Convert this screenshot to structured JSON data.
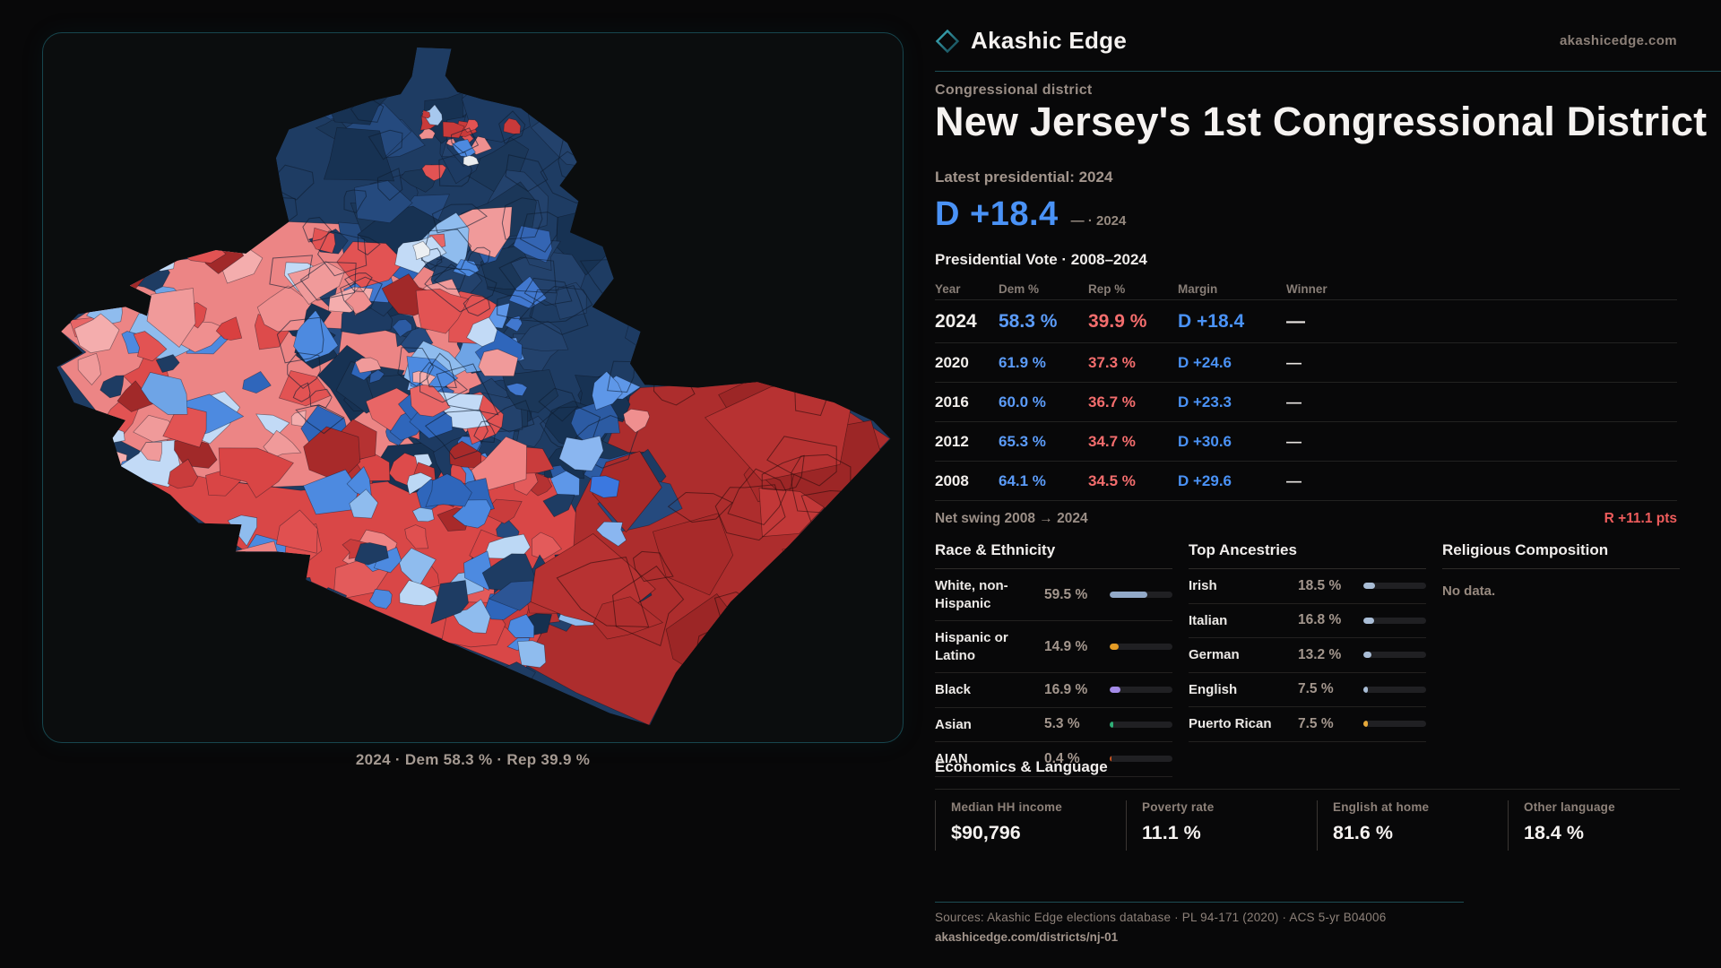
{
  "brand": {
    "name": "Akashic Edge",
    "domain": "akashicedge.com"
  },
  "header": {
    "kicker": "Congressional district",
    "title": "New Jersey's 1st Congressional District",
    "latest_label": "Latest presidential: 2024",
    "headline_margin": "D +18.4",
    "headline_note": "— · 2024"
  },
  "vote_table": {
    "section_title": "Presidential Vote · 2008–2024",
    "columns": [
      "Year",
      "Dem %",
      "Rep %",
      "Margin",
      "Winner"
    ],
    "rows": [
      {
        "year": "2024",
        "dem": "58.3 %",
        "rep": "39.9 %",
        "margin": "D +18.4",
        "winner": "—",
        "highlight": true
      },
      {
        "year": "2020",
        "dem": "61.9 %",
        "rep": "37.3 %",
        "margin": "D +24.6",
        "winner": "—",
        "highlight": false
      },
      {
        "year": "2016",
        "dem": "60.0 %",
        "rep": "36.7 %",
        "margin": "D +23.3",
        "winner": "—",
        "highlight": false
      },
      {
        "year": "2012",
        "dem": "65.3 %",
        "rep": "34.7 %",
        "margin": "D +30.6",
        "winner": "—",
        "highlight": false
      },
      {
        "year": "2008",
        "dem": "64.1 %",
        "rep": "34.5 %",
        "margin": "D +29.6",
        "winner": "—",
        "highlight": false
      }
    ],
    "net_swing_label": "Net swing 2008 → 2024",
    "net_swing_value": "R +11.1 pts"
  },
  "race": {
    "title": "Race & Ethnicity",
    "rows": [
      {
        "label": "White, non-Hispanic",
        "display": "59.5 %",
        "value": 59.5,
        "color": "#92a9c8"
      },
      {
        "label": "Hispanic or Latino",
        "display": "14.9 %",
        "value": 14.9,
        "color": "#e59c25"
      },
      {
        "label": "Black",
        "display": "16.9 %",
        "value": 16.9,
        "color": "#a48be8"
      },
      {
        "label": "Asian",
        "display": "5.3 %",
        "value": 5.3,
        "color": "#2fae77"
      },
      {
        "label": "AIAN",
        "display": "0.4 %",
        "value": 0.4,
        "color": "#cc5522"
      }
    ]
  },
  "ancestries": {
    "title": "Top Ancestries",
    "rows": [
      {
        "label": "Irish",
        "display": "18.5 %",
        "value": 18.5,
        "color": "#a9bdd6"
      },
      {
        "label": "Italian",
        "display": "16.8 %",
        "value": 16.8,
        "color": "#a9bdd6"
      },
      {
        "label": "German",
        "display": "13.2 %",
        "value": 13.2,
        "color": "#a9bdd6"
      },
      {
        "label": "English",
        "display": "7.5 %",
        "value": 7.5,
        "color": "#a9bdd6"
      },
      {
        "label": "Puerto Rican",
        "display": "7.5 %",
        "value": 7.5,
        "color": "#e6a93a"
      }
    ]
  },
  "religion": {
    "title": "Religious Composition",
    "empty": "No data."
  },
  "economics": {
    "title": "Economics & Language",
    "cards": [
      {
        "label": "Median HH income",
        "value": "$90,796"
      },
      {
        "label": "Poverty rate",
        "value": "11.1 %"
      },
      {
        "label": "English at home",
        "value": "81.6 %"
      },
      {
        "label": "Other language",
        "value": "18.4 %"
      }
    ]
  },
  "footer": {
    "sources": "Sources: Akashic Edge elections database · PL 94-171 (2020) · ACS 5-yr B04006",
    "permalink": "akashicedge.com/districts/nj-01"
  },
  "map": {
    "caption": "2024 · Dem 58.3 % · Rep 39.9 %",
    "base_color": "#1e3c63",
    "cell_stroke": "rgba(10,18,30,0.45)",
    "outline": [
      [
        0.435,
        0.02
      ],
      [
        0.475,
        0.022
      ],
      [
        0.468,
        0.06
      ],
      [
        0.482,
        0.083
      ],
      [
        0.512,
        0.094
      ],
      [
        0.556,
        0.106
      ],
      [
        0.61,
        0.155
      ],
      [
        0.621,
        0.182
      ],
      [
        0.601,
        0.215
      ],
      [
        0.623,
        0.237
      ],
      [
        0.613,
        0.281
      ],
      [
        0.651,
        0.301
      ],
      [
        0.664,
        0.346
      ],
      [
        0.639,
        0.386
      ],
      [
        0.695,
        0.421
      ],
      [
        0.683,
        0.466
      ],
      [
        0.7,
        0.496
      ],
      [
        0.762,
        0.5
      ],
      [
        0.831,
        0.492
      ],
      [
        0.872,
        0.506
      ],
      [
        0.92,
        0.521
      ],
      [
        0.966,
        0.547
      ],
      [
        0.986,
        0.572
      ],
      [
        0.87,
        0.72
      ],
      [
        0.8,
        0.802
      ],
      [
        0.736,
        0.902
      ],
      [
        0.706,
        0.976
      ],
      [
        0.659,
        0.959
      ],
      [
        0.561,
        0.906
      ],
      [
        0.456,
        0.851
      ],
      [
        0.362,
        0.801
      ],
      [
        0.306,
        0.771
      ],
      [
        0.311,
        0.736
      ],
      [
        0.271,
        0.731
      ],
      [
        0.224,
        0.731
      ],
      [
        0.231,
        0.693
      ],
      [
        0.181,
        0.691
      ],
      [
        0.148,
        0.651
      ],
      [
        0.091,
        0.611
      ],
      [
        0.081,
        0.571
      ],
      [
        0.096,
        0.546
      ],
      [
        0.036,
        0.521
      ],
      [
        0.016,
        0.471
      ],
      [
        0.046,
        0.451
      ],
      [
        0.021,
        0.421
      ],
      [
        0.041,
        0.396
      ],
      [
        0.096,
        0.386
      ],
      [
        0.121,
        0.399
      ],
      [
        0.126,
        0.371
      ],
      [
        0.101,
        0.356
      ],
      [
        0.156,
        0.321
      ],
      [
        0.201,
        0.306
      ],
      [
        0.236,
        0.311
      ],
      [
        0.286,
        0.266
      ],
      [
        0.278,
        0.226
      ],
      [
        0.271,
        0.176
      ],
      [
        0.286,
        0.136
      ],
      [
        0.331,
        0.116
      ],
      [
        0.381,
        0.096
      ],
      [
        0.416,
        0.086
      ],
      [
        0.429,
        0.061
      ]
    ],
    "zones": [
      {
        "name": "mixed-left",
        "color": "#ec8585",
        "points": [
          [
            0.03,
            0.41
          ],
          [
            0.1,
            0.355
          ],
          [
            0.156,
            0.32
          ],
          [
            0.236,
            0.31
          ],
          [
            0.286,
            0.266
          ],
          [
            0.36,
            0.27
          ],
          [
            0.44,
            0.315
          ],
          [
            0.5,
            0.38
          ],
          [
            0.535,
            0.45
          ],
          [
            0.52,
            0.53
          ],
          [
            0.46,
            0.6
          ],
          [
            0.37,
            0.635
          ],
          [
            0.27,
            0.64
          ],
          [
            0.17,
            0.625
          ],
          [
            0.09,
            0.575
          ],
          [
            0.02,
            0.47
          ],
          [
            0.05,
            0.45
          ],
          [
            0.02,
            0.42
          ]
        ]
      },
      {
        "name": "red-band-southwest",
        "color": "#d94747",
        "points": [
          [
            0.09,
            0.6
          ],
          [
            0.2,
            0.63
          ],
          [
            0.3,
            0.645
          ],
          [
            0.42,
            0.63
          ],
          [
            0.52,
            0.6
          ],
          [
            0.6,
            0.63
          ],
          [
            0.63,
            0.7
          ],
          [
            0.6,
            0.79
          ],
          [
            0.56,
            0.9
          ],
          [
            0.455,
            0.85
          ],
          [
            0.36,
            0.8
          ],
          [
            0.305,
            0.77
          ],
          [
            0.24,
            0.735
          ],
          [
            0.145,
            0.655
          ]
        ]
      },
      {
        "name": "red-wing-southeast",
        "color": "#ad2d2d",
        "points": [
          [
            0.695,
            0.5
          ],
          [
            0.83,
            0.49
          ],
          [
            0.92,
            0.52
          ],
          [
            0.985,
            0.572
          ],
          [
            0.87,
            0.72
          ],
          [
            0.735,
            0.905
          ],
          [
            0.705,
            0.976
          ],
          [
            0.62,
            0.93
          ],
          [
            0.56,
            0.89
          ],
          [
            0.615,
            0.77
          ],
          [
            0.62,
            0.67
          ],
          [
            0.655,
            0.585
          ],
          [
            0.675,
            0.52
          ]
        ]
      }
    ],
    "scatter": [
      {
        "name": "navy-texture",
        "box": [
          0.28,
          0.08,
          0.67,
          0.52
        ],
        "count": 60,
        "r": [
          16,
          50
        ],
        "seed": 11,
        "palette": [
          "#1b3759",
          "#23426c",
          "#173253",
          "#254a7e",
          "#1d3b63"
        ]
      },
      {
        "name": "navy-lower",
        "box": [
          0.42,
          0.42,
          0.72,
          0.8
        ],
        "count": 34,
        "r": [
          16,
          44
        ],
        "seed": 12,
        "palette": [
          "#1b3759",
          "#23426c",
          "#173253",
          "#254a7e",
          "#1d3b63"
        ]
      },
      {
        "name": "navy-blue-patches",
        "box": [
          0.38,
          0.28,
          0.68,
          0.64
        ],
        "count": 24,
        "r": [
          10,
          32
        ],
        "seed": 13,
        "palette": [
          "#3465b3",
          "#4178cf",
          "#5e97e8",
          "#8ab6f0",
          "#2c5ba3"
        ]
      },
      {
        "name": "mixed-cells",
        "box": [
          0.05,
          0.27,
          0.53,
          0.62
        ],
        "count": 95,
        "r": [
          10,
          36
        ],
        "seed": 14,
        "palette": [
          "#ef8f8f",
          "#f4adad",
          "#e25353",
          "#d94040",
          "#a12929",
          "#4d8ae0",
          "#2f66bb",
          "#8fbcee",
          "#c2daf6",
          "#1e3c63",
          "#6ea4e6",
          "#e86666",
          "#f09a9a",
          "#dd4b4b"
        ]
      },
      {
        "name": "band-cells",
        "box": [
          0.12,
          0.58,
          0.6,
          0.86
        ],
        "count": 42,
        "r": [
          12,
          40
        ],
        "seed": 15,
        "palette": [
          "#e05050",
          "#c93c3c",
          "#a82a2a",
          "#ef8484",
          "#d94545",
          "#e35b5b",
          "#b53232",
          "#4d8ae0",
          "#8fbcee"
        ]
      },
      {
        "name": "bottom-blue-cluster",
        "box": [
          0.3,
          0.62,
          0.54,
          0.82
        ],
        "count": 20,
        "r": [
          10,
          28
        ],
        "seed": 16,
        "palette": [
          "#4d8ae0",
          "#8fbcee",
          "#2f66bb",
          "#bcd8f5",
          "#1e3c63",
          "#5e97e8"
        ]
      },
      {
        "name": "bottom-navy",
        "box": [
          0.44,
          0.74,
          0.64,
          0.92
        ],
        "count": 14,
        "r": [
          12,
          30
        ],
        "seed": 17,
        "palette": [
          "#1e3c63",
          "#2c5595",
          "#4d8ae0",
          "#16304f",
          "#8fbcee"
        ]
      },
      {
        "name": "wing-cells",
        "box": [
          0.63,
          0.5,
          0.96,
          0.9
        ],
        "count": 16,
        "r": [
          34,
          85
        ],
        "seed": 18,
        "stroke": "rgba(30,8,8,0.5)",
        "palette": [
          "#a82a2a",
          "#b73232",
          "#c23838",
          "#9c2626",
          "#b02e2e"
        ]
      },
      {
        "name": "top-red-cluster",
        "box": [
          0.44,
          0.115,
          0.55,
          0.2
        ],
        "count": 14,
        "r": [
          5,
          14
        ],
        "seed": 19,
        "palette": [
          "#e25353",
          "#ef8f8f",
          "#f4adad",
          "#a7c8ee",
          "#4d8ae0",
          "#d94040",
          "#c93a3a"
        ]
      },
      {
        "name": "navy-boundary-lines",
        "box": [
          0.28,
          0.08,
          0.68,
          0.58
        ],
        "count": 50,
        "r": [
          12,
          38
        ],
        "seed": 20,
        "strokeOnly": true,
        "stroke": "rgba(14,28,48,0.6)"
      },
      {
        "name": "wing-boundary-lines",
        "box": [
          0.63,
          0.5,
          0.95,
          0.88
        ],
        "count": 14,
        "r": [
          22,
          60
        ],
        "seed": 21,
        "strokeOnly": true,
        "stroke": "rgba(35,10,10,0.55)"
      }
    ],
    "patches": [
      {
        "f": [
          0.497,
          0.178
        ],
        "r": 9,
        "color": "#e9ecef",
        "seed": 31
      },
      {
        "f": [
          0.44,
          0.307
        ],
        "r": 11,
        "color": "#eceff2",
        "seed": 32
      },
      {
        "f": [
          0.627,
          0.588
        ],
        "r": 24,
        "color": "#8ab6f0",
        "seed": 33
      },
      {
        "f": [
          0.65,
          0.64
        ],
        "r": 19,
        "color": "#3b78e0",
        "seed": 34
      },
      {
        "f": [
          0.603,
          0.663
        ],
        "r": 17,
        "color": "#1e3c63",
        "seed": 35
      },
      {
        "f": [
          0.663,
          0.705
        ],
        "r": 15,
        "color": "#8ab6f0",
        "seed": 36
      },
      {
        "f": [
          0.69,
          0.545
        ],
        "r": 14,
        "color": "#ef8f8f",
        "seed": 37
      }
    ]
  }
}
